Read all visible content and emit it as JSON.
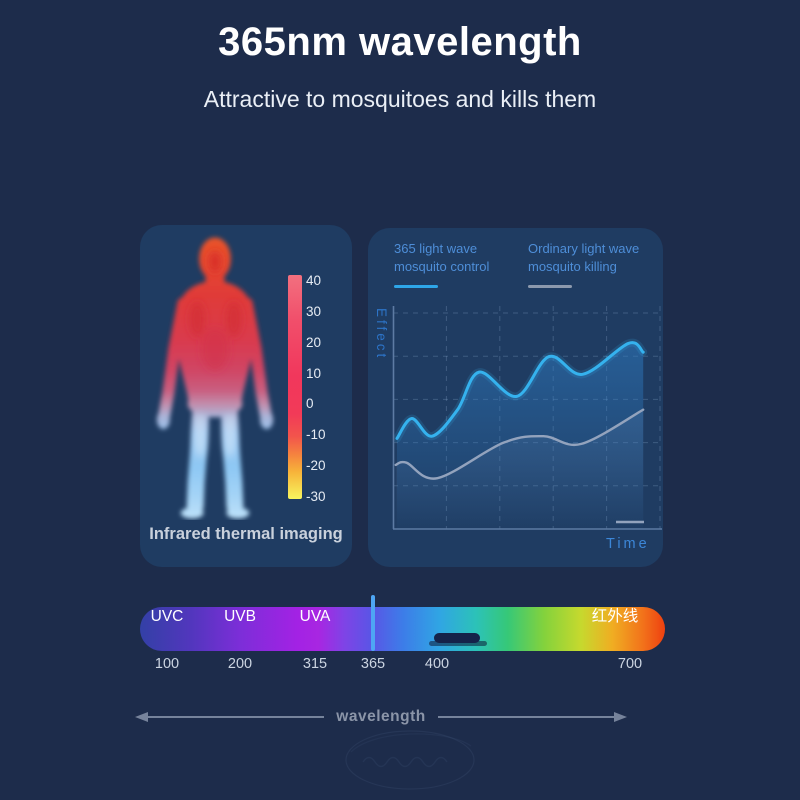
{
  "header": {
    "title": "365nm wavelength",
    "subtitle": "Attractive to mosquitoes and kills them"
  },
  "thermal": {
    "caption": "Infrared thermal imaging",
    "scale_labels": [
      "40",
      "30",
      "20",
      "10",
      "0",
      "-10",
      "-20",
      "-30"
    ]
  },
  "chart_panel": {
    "legend": [
      {
        "line1": "365 light wave",
        "line2": "mosquito control",
        "color": "#2ea6e8"
      },
      {
        "line1": "Ordinary light wave",
        "line2": "mosquito killing",
        "color": "#8c99ad"
      }
    ],
    "y_axis_label": "Effect",
    "x_axis_label": "Time"
  },
  "chart_data": {
    "type": "line",
    "title": "Mosquito control effect over time: 365nm light wave vs ordinary light wave",
    "xlabel": "Time",
    "ylabel": "Effect",
    "x_range": [
      0,
      100
    ],
    "y_range": [
      0,
      100
    ],
    "grid": true,
    "grid_style": "dashed",
    "legend_position": "top",
    "axes_ticks_labeled": false,
    "series": [
      {
        "name": "365 light wave mosquito control",
        "color": "#35b2ee",
        "x": [
          1.5,
          7,
          14.5,
          24,
          32,
          46,
          58,
          70.5,
          87.5,
          93
        ],
        "y": [
          41,
          50,
          42,
          54,
          71,
          60,
          78,
          70,
          84,
          80
        ]
      },
      {
        "name": "Ordinary light wave mosquito killing",
        "color": "#93a3bd",
        "x": [
          1,
          5,
          16.5,
          41,
          56,
          70,
          93
        ],
        "y": [
          29,
          30,
          23,
          39,
          42,
          38.5,
          54
        ]
      }
    ]
  },
  "spectrum": {
    "bands": [
      {
        "label": "UVC"
      },
      {
        "label": "UVB"
      },
      {
        "label": "UVA"
      },
      {
        "label": "红外线"
      }
    ],
    "ticks": [
      {
        "label": "100"
      },
      {
        "label": "200"
      },
      {
        "label": "315"
      },
      {
        "label": "365"
      },
      {
        "label": "400"
      },
      {
        "label": "700"
      }
    ],
    "marker_value": "365",
    "axis_label": "wavelength",
    "marker_color": "#4ea6f4"
  }
}
